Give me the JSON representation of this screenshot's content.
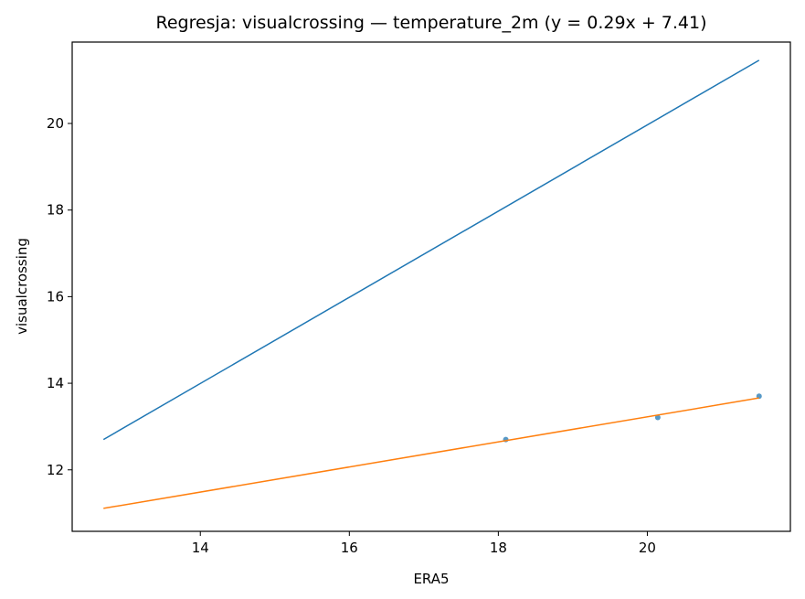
{
  "chart_data": {
    "type": "scatter",
    "title": "Regresja: visualcrossing — temperature_2m (y = 0.29x + 7.41)",
    "xlabel": "ERA5",
    "ylabel": "visualcrossing",
    "xlim": [
      12.28,
      21.92
    ],
    "ylim": [
      10.58,
      21.88
    ],
    "x_ticks": [
      14,
      16,
      18,
      20
    ],
    "y_ticks": [
      12,
      14,
      16,
      18,
      20
    ],
    "grid": false,
    "series": [
      {
        "kind": "scatter",
        "color": "#1f77b4",
        "points": [
          {
            "x": 18.1,
            "y": 12.7
          },
          {
            "x": 20.14,
            "y": 13.21
          },
          {
            "x": 21.5,
            "y": 13.7
          }
        ]
      },
      {
        "kind": "line",
        "color": "#1f77b4",
        "points": [
          {
            "x": 12.7,
            "y": 12.7
          },
          {
            "x": 21.5,
            "y": 21.46
          }
        ]
      },
      {
        "kind": "line",
        "color": "#ff7f0e",
        "points": [
          {
            "x": 12.7,
            "y": 11.11
          },
          {
            "x": 21.5,
            "y": 13.66
          }
        ]
      }
    ]
  }
}
